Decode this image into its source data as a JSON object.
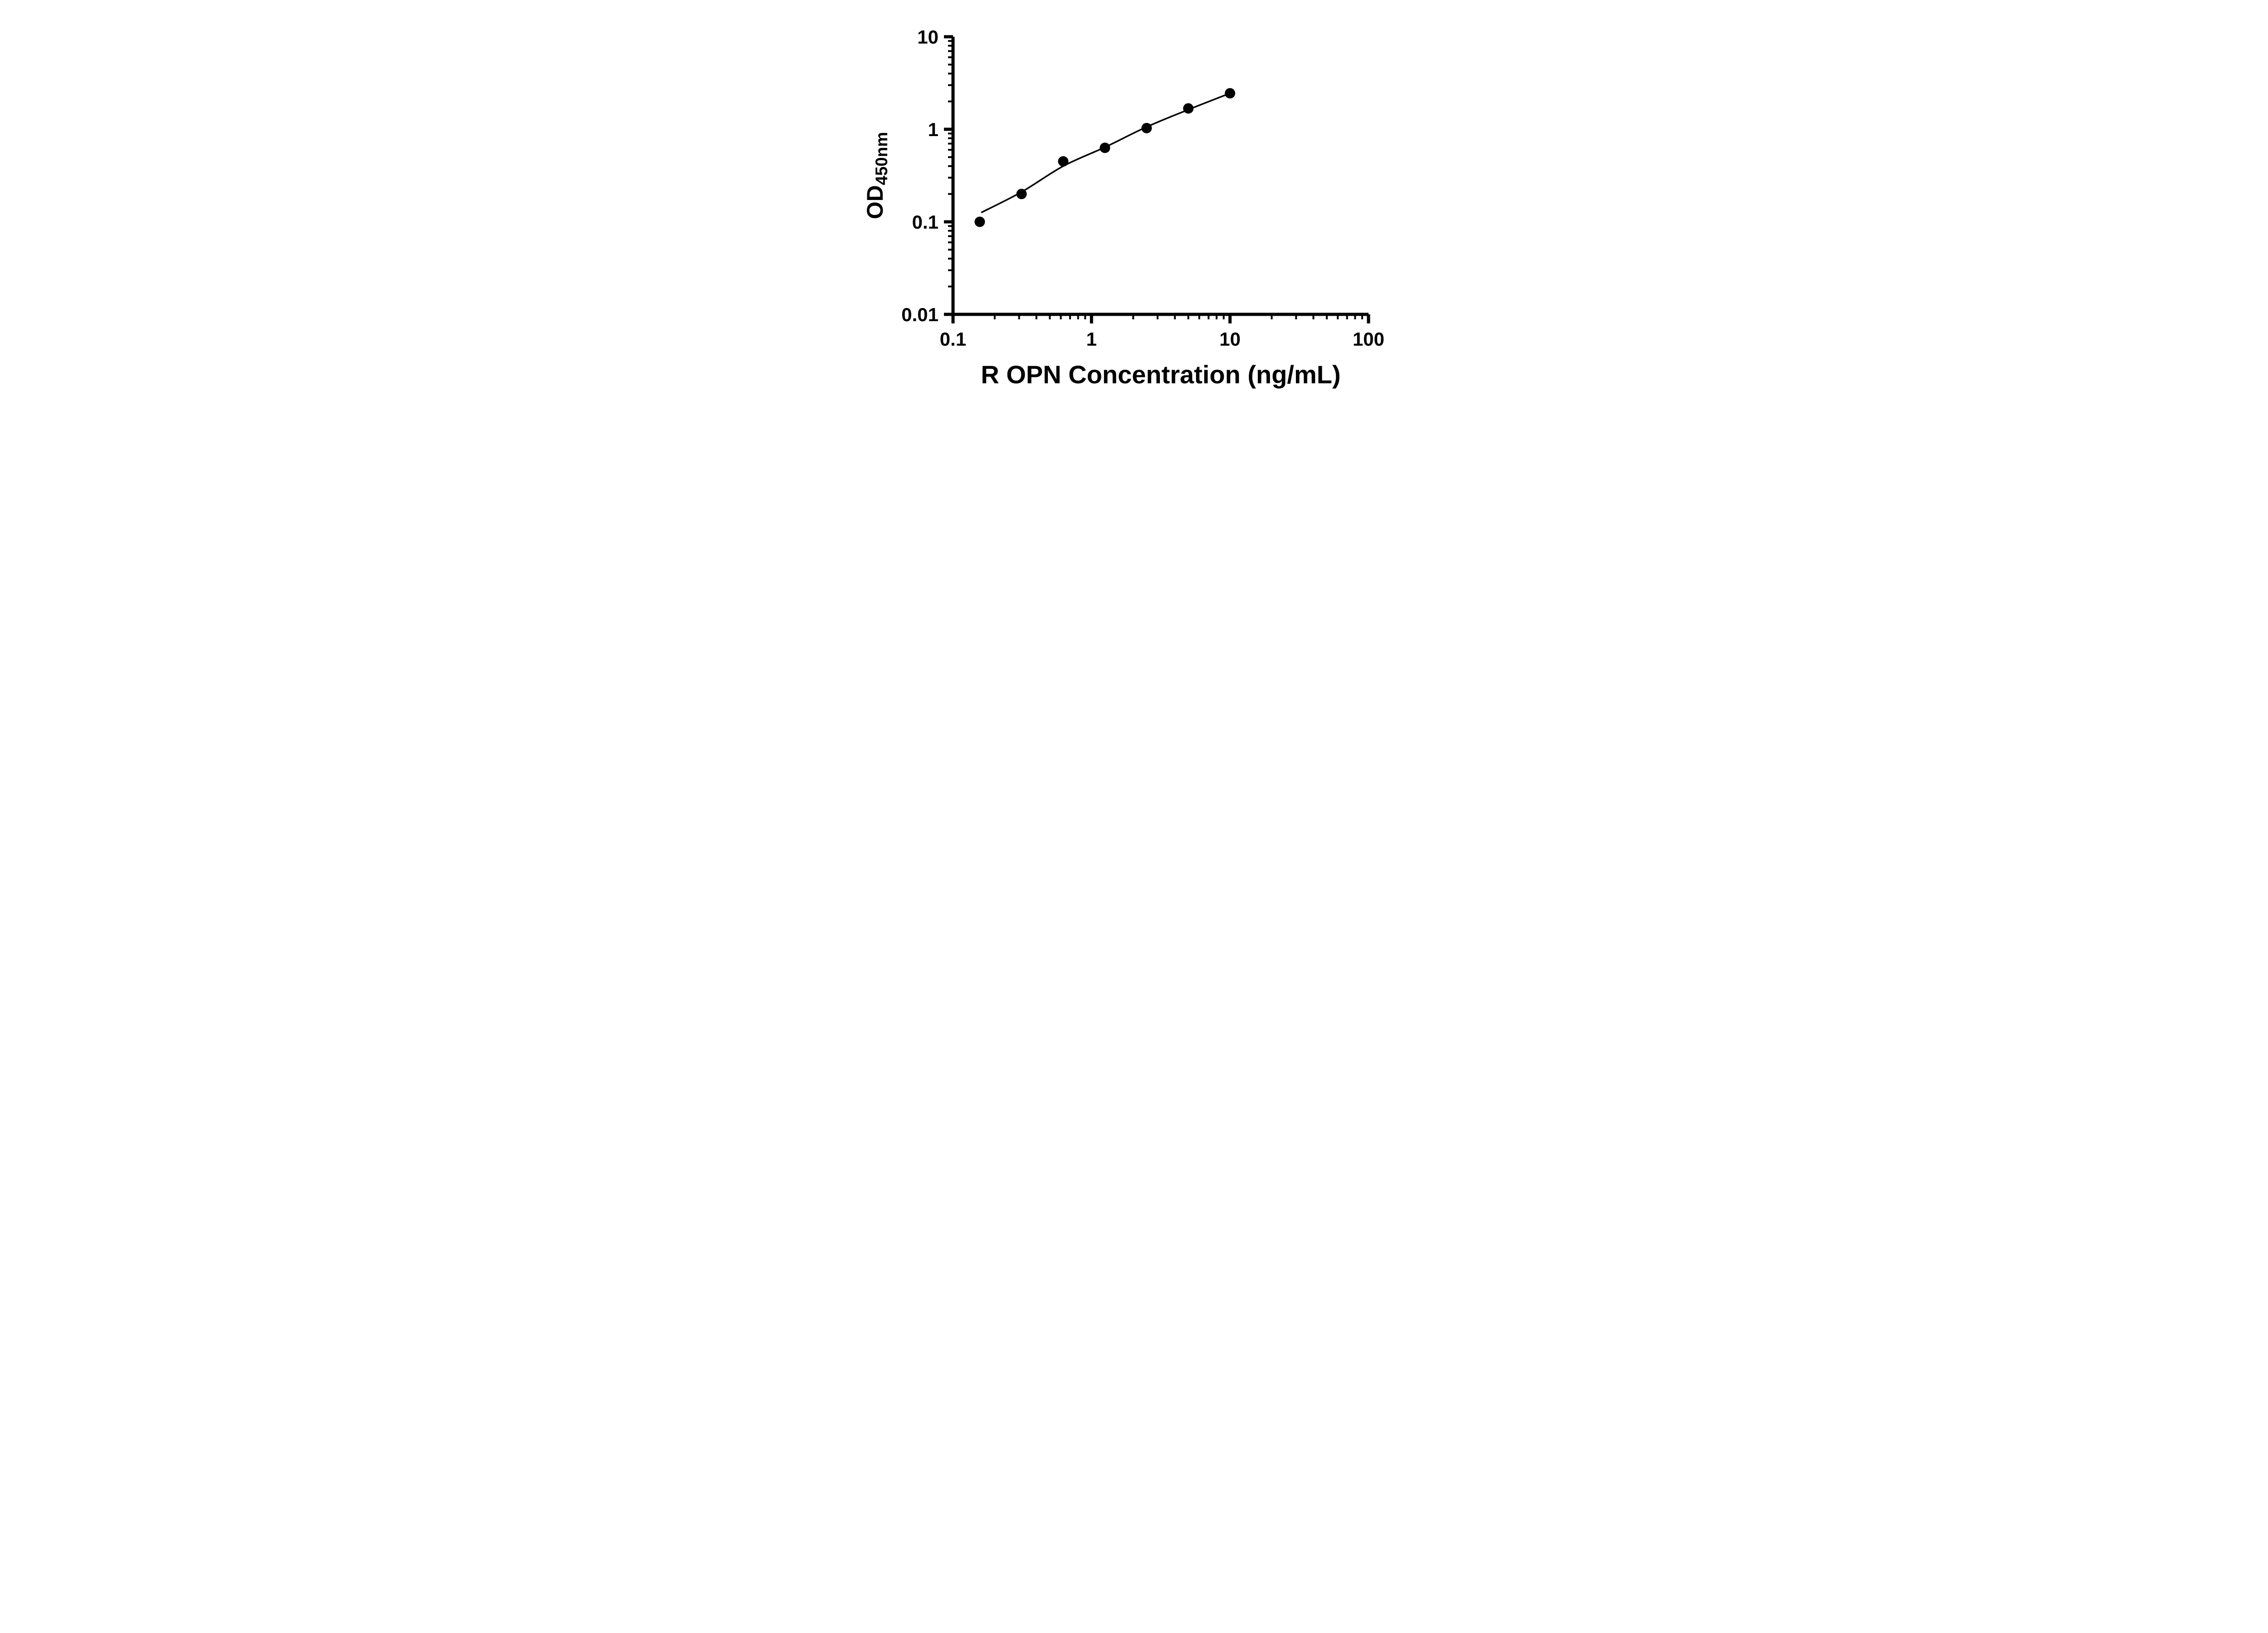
{
  "chart_data": {
    "type": "scatter",
    "title": "",
    "xlabel": "R OPN Concentration (ng/mL)",
    "ylabel_main": "OD",
    "ylabel_sub": "450nm",
    "x_scale": "log",
    "y_scale": "log",
    "xlim": [
      0.1,
      100
    ],
    "ylim": [
      0.01,
      10
    ],
    "grid": false,
    "legend": "none",
    "marker_color": "#000000",
    "line_color": "#000000",
    "axis_color": "#000000",
    "background": "#ffffff",
    "x_ticks": [
      {
        "value": 0.1,
        "label": "0.1"
      },
      {
        "value": 1,
        "label": "1"
      },
      {
        "value": 10,
        "label": "10"
      },
      {
        "value": 100,
        "label": "100"
      }
    ],
    "y_ticks": [
      {
        "value": 0.01,
        "label": "0.01"
      },
      {
        "value": 0.1,
        "label": "0.1"
      },
      {
        "value": 1,
        "label": "1"
      },
      {
        "value": 10,
        "label": "10"
      }
    ],
    "points": [
      {
        "x": 0.156,
        "y": 0.1
      },
      {
        "x": 0.3125,
        "y": 0.2
      },
      {
        "x": 0.625,
        "y": 0.45
      },
      {
        "x": 1.25,
        "y": 0.63
      },
      {
        "x": 2.5,
        "y": 1.03
      },
      {
        "x": 5,
        "y": 1.68
      },
      {
        "x": 10,
        "y": 2.45
      }
    ],
    "fit_curve": [
      {
        "x": 0.16,
        "y": 0.126
      },
      {
        "x": 0.3125,
        "y": 0.21
      },
      {
        "x": 0.625,
        "y": 0.4
      },
      {
        "x": 1.25,
        "y": 0.64
      },
      {
        "x": 2.5,
        "y": 1.06
      },
      {
        "x": 5,
        "y": 1.63
      },
      {
        "x": 10,
        "y": 2.45
      }
    ]
  }
}
